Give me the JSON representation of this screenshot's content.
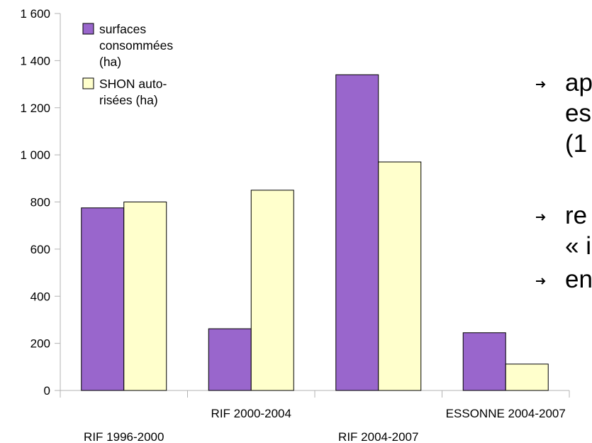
{
  "chart_data": {
    "type": "bar",
    "categories": [
      "RIF 1996-2000",
      "RIF 2000-2004",
      "RIF 2004-2007",
      "ESSONNE 2004-2007"
    ],
    "series": [
      {
        "name": "surfaces consommées (ha)",
        "color": "#9966cc",
        "values": [
          775,
          262,
          1340,
          245
        ]
      },
      {
        "name": "SHON auto-risées (ha)",
        "color": "#ffffcc",
        "values": [
          800,
          850,
          970,
          112
        ]
      }
    ],
    "ylim": [
      0,
      1600
    ],
    "yticks": [
      0,
      {
        "value": 200,
        "label": "200"
      },
      {
        "value": 400,
        "label": "400"
      },
      {
        "value": 600,
        "label": "600"
      },
      {
        "value": 800,
        "label": "800"
      },
      {
        "value": 1000,
        "label": "1 000"
      },
      {
        "value": 1200,
        "label": "1 200"
      },
      {
        "value": 1400,
        "label": "1 400"
      },
      {
        "value": 1600,
        "label": "1 600"
      }
    ],
    "grid": false,
    "legend": "top-left",
    "annotations": [
      [
        "ap",
        "es",
        "(1"
      ],
      [
        "re",
        "« i"
      ],
      [
        "en"
      ]
    ]
  }
}
